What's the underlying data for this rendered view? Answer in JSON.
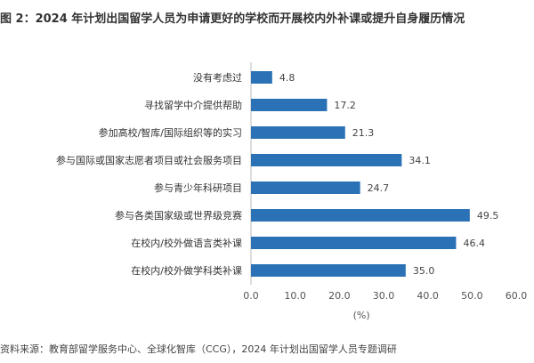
{
  "title": "图 2：2024 年计划出国留学人员为申请更好的学校而开展校内外补课或提升自身履历情况",
  "source": "资料来源：教育部留学服务中心、全球化智库（CCG），2024 年计划出国留学人员专题调研",
  "chart_data": {
    "type": "bar",
    "orientation": "horizontal",
    "categories": [
      "没有考虑过",
      "寻找留学中介提供帮助",
      "参加高校/智库/国际组织等的实习",
      "参与国际或国家志愿者项目或社会服务项目",
      "参与青少年科研项目",
      "参与各类国家级或世界级竞赛",
      "在校内/校外做语言类补课",
      "在校内/校外做学科类补课"
    ],
    "values": [
      4.8,
      17.2,
      21.3,
      34.1,
      24.7,
      49.5,
      46.4,
      35.0
    ],
    "value_labels": [
      "4.8",
      "17.2",
      "21.3",
      "34.1",
      "24.7",
      "49.5",
      "46.4",
      "35.0"
    ],
    "xlim": [
      0,
      60
    ],
    "xticks": [
      "0.0",
      "10.0",
      "20.0",
      "30.0",
      "40.0",
      "50.0",
      "60.0"
    ],
    "xlabel": "(%)",
    "ylabel": "",
    "grid": false,
    "legend": "none",
    "bar_color": "#2a72b5"
  }
}
